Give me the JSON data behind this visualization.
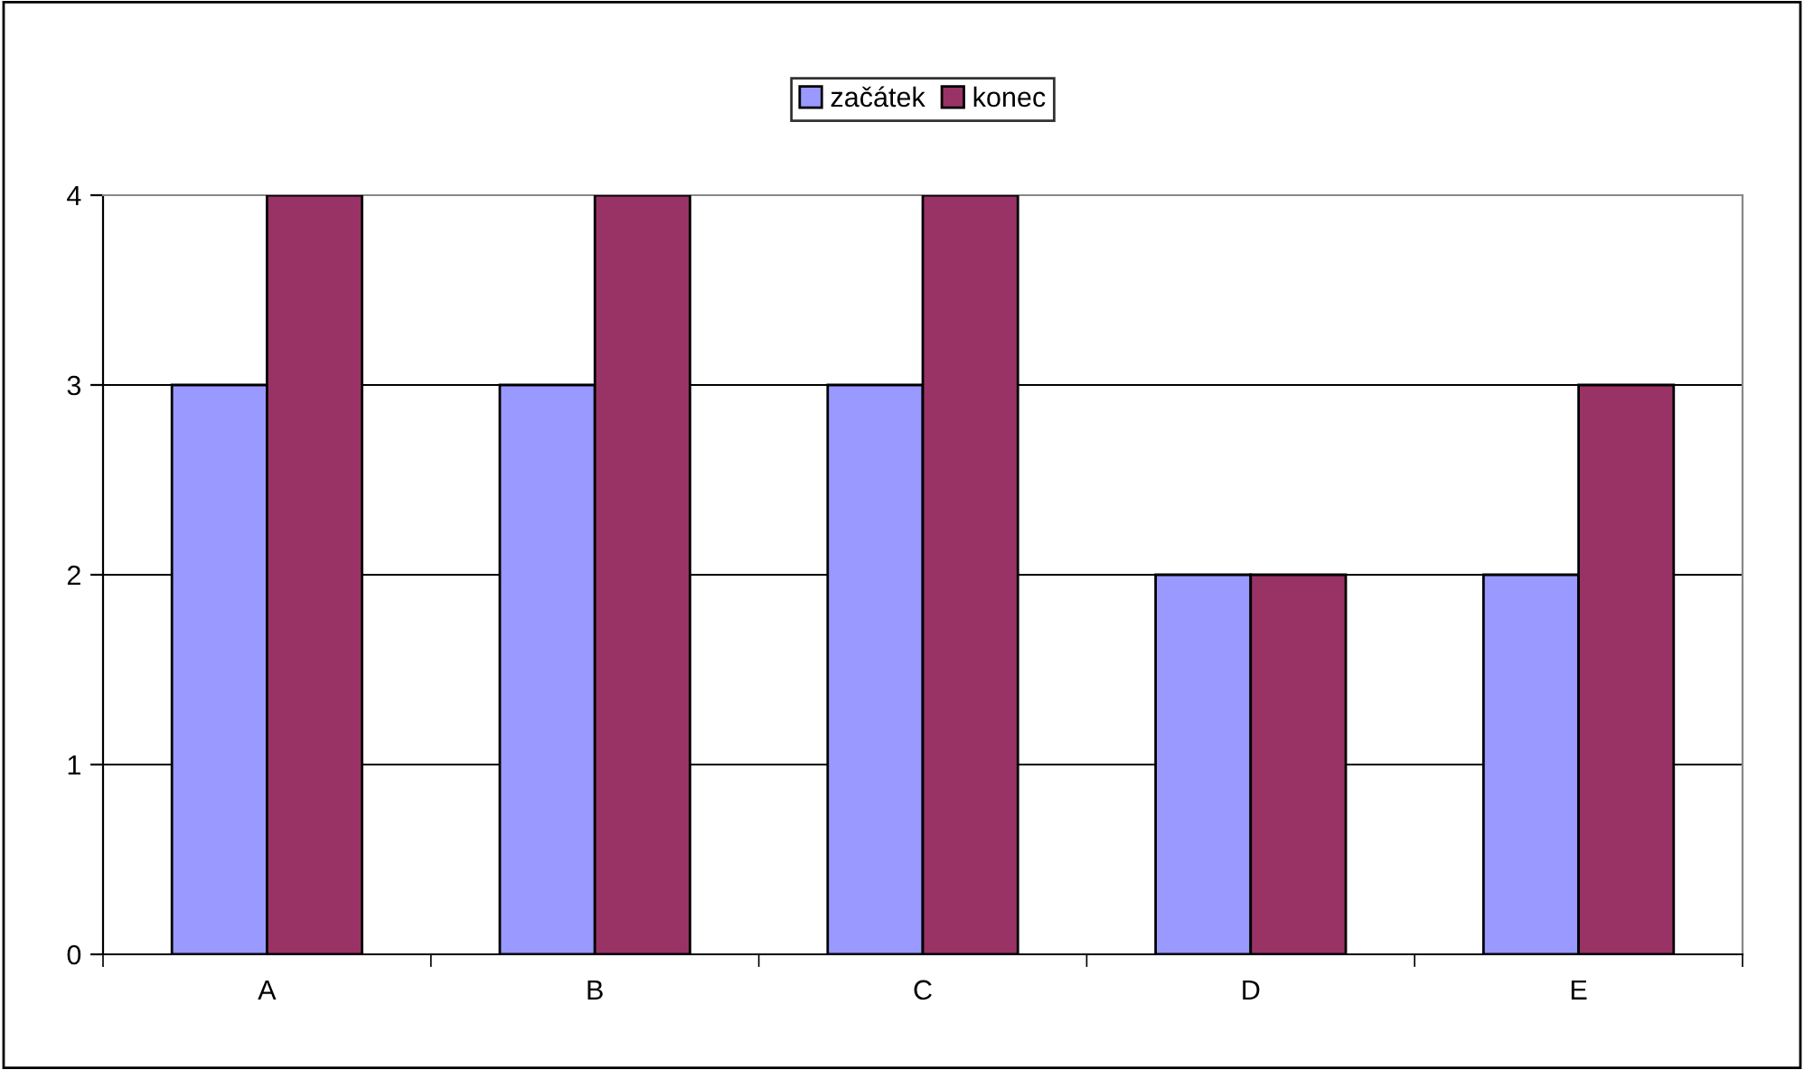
{
  "chart_data": {
    "type": "bar",
    "categories": [
      "A",
      "B",
      "C",
      "D",
      "E"
    ],
    "series": [
      {
        "name": "začátek",
        "color": "#9999ff",
        "values": [
          3,
          3,
          3,
          2,
          2
        ]
      },
      {
        "name": "konec",
        "color": "#993366",
        "values": [
          4,
          4,
          4,
          2,
          3
        ]
      }
    ],
    "ylim": [
      0,
      4
    ],
    "yticks": [
      0,
      1,
      2,
      3,
      4
    ],
    "grid": "y",
    "legend": "top"
  }
}
